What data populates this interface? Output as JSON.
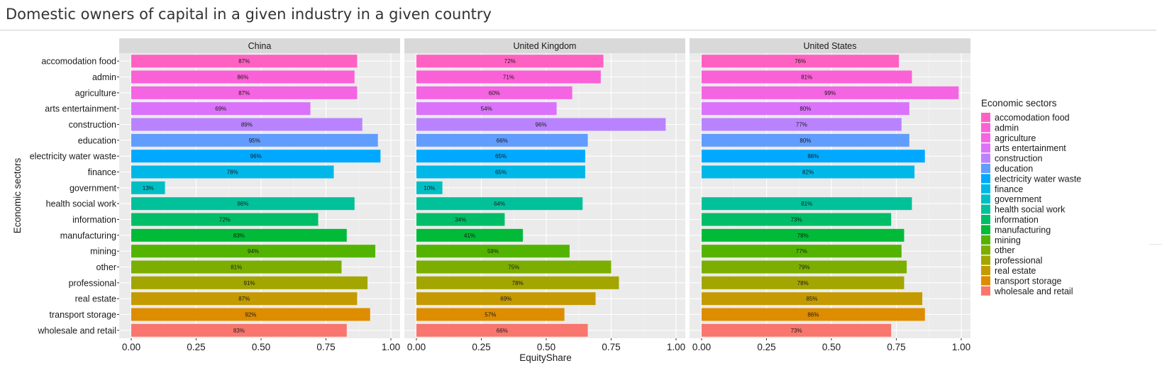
{
  "page": {
    "title": "Domestic owners of capital in a given industry in a given country"
  },
  "chart_data": {
    "type": "bar",
    "orientation": "horizontal",
    "facets": [
      "China",
      "United Kingdom",
      "United States"
    ],
    "categories": [
      "accomodation food",
      "admin",
      "agriculture",
      "arts entertainment",
      "construction",
      "education",
      "electricity water waste",
      "finance",
      "government",
      "health social work",
      "information",
      "manufacturing",
      "mining",
      "other",
      "professional",
      "real estate",
      "transport storage",
      "wholesale and retail"
    ],
    "colors": [
      "#FF61C3",
      "#FB61D7",
      "#F564E3",
      "#DB72FB",
      "#B983FF",
      "#619CFF",
      "#00A9FF",
      "#00B8E7",
      "#00BFC4",
      "#00C19A",
      "#00BE67",
      "#00BA38",
      "#53B400",
      "#7CAE00",
      "#A3A500",
      "#C49A00",
      "#DE8C00",
      "#F8766D"
    ],
    "series": [
      {
        "facet": "China",
        "values": [
          0.87,
          0.86,
          0.87,
          0.69,
          0.89,
          0.95,
          0.96,
          0.78,
          0.13,
          0.86,
          0.72,
          0.83,
          0.94,
          0.81,
          0.91,
          0.87,
          0.92,
          0.83
        ],
        "labels": [
          "87%",
          "86%",
          "87%",
          "69%",
          "89%",
          "95%",
          "96%",
          "78%",
          "13%",
          "86%",
          "72%",
          "83%",
          "94%",
          "81%",
          "91%",
          "87%",
          "92%",
          "83%"
        ]
      },
      {
        "facet": "United Kingdom",
        "values": [
          0.72,
          0.71,
          0.6,
          0.54,
          0.96,
          0.66,
          0.65,
          0.65,
          0.1,
          0.64,
          0.34,
          0.41,
          0.59,
          0.75,
          0.78,
          0.69,
          0.57,
          0.66
        ],
        "labels": [
          "72%",
          "71%",
          "60%",
          "54%",
          "96%",
          "66%",
          "65%",
          "65%",
          "10%",
          "64%",
          "34%",
          "41%",
          "59%",
          "75%",
          "78%",
          "69%",
          "57%",
          "66%"
        ]
      },
      {
        "facet": "United States",
        "values": [
          0.76,
          0.81,
          0.99,
          0.8,
          0.77,
          0.8,
          0.86,
          0.82,
          null,
          0.81,
          0.73,
          0.78,
          0.77,
          0.79,
          0.78,
          0.85,
          0.86,
          0.73
        ],
        "labels": [
          "76%",
          "81%",
          "99%",
          "80%",
          "77%",
          "80%",
          "86%",
          "82%",
          "",
          "81%",
          "73%",
          "78%",
          "77%",
          "79%",
          "78%",
          "85%",
          "86%",
          "73%"
        ]
      }
    ],
    "xlabel": "EquityShare",
    "ylabel": "Economic sectors",
    "xlim": [
      0,
      1
    ],
    "xticks": [
      0,
      0.25,
      0.5,
      0.75,
      1
    ],
    "xtick_labels": [
      "0.00",
      "0.25",
      "0.50",
      "0.75",
      "1.00"
    ],
    "legend_title": "Economic sectors",
    "legend_position": "right",
    "grid": true
  }
}
